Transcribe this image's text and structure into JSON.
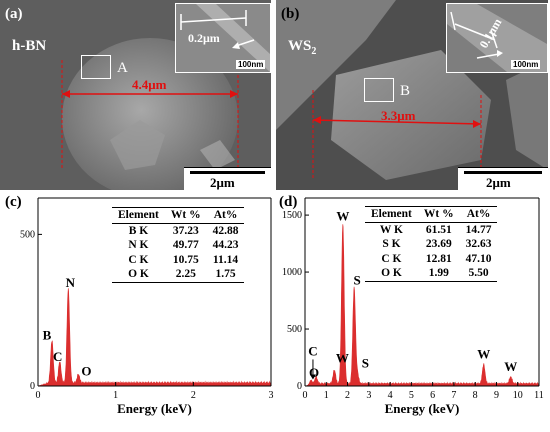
{
  "panel_a": {
    "label": "(a)",
    "material": "h-BN",
    "measurement": "4.4μm",
    "region": "A",
    "scale": "2μm",
    "inset_measure": "0.2μm",
    "inset_scale": "100nm"
  },
  "panel_b": {
    "label": "(b)",
    "material_main": "WS",
    "material_sub": "2",
    "measurement": "3.3μm",
    "region": "B",
    "scale": "2μm",
    "inset_measure": "0.1μm",
    "inset_scale": "100nm"
  },
  "chart_data": [
    {
      "type": "area",
      "panel": "(c)",
      "title": "",
      "xlabel": "Energy (keV)",
      "ylabel": "",
      "xlim": [
        0,
        3
      ],
      "ylim": [
        0,
        620
      ],
      "xticks": [
        0,
        1,
        2,
        3
      ],
      "yticks": [
        0,
        500
      ],
      "peaks": [
        {
          "label": "B",
          "x": 0.18,
          "y": 140
        },
        {
          "label": "C",
          "x": 0.28,
          "y": 70
        },
        {
          "label": "N",
          "x": 0.39,
          "y": 310
        },
        {
          "label": "O",
          "x": 0.52,
          "y": 28
        }
      ],
      "baseline": 10,
      "color": "#d81818",
      "table": {
        "headers": [
          "Element",
          "Wt %",
          "At%"
        ],
        "rows": [
          [
            "B K",
            "37.23",
            "42.88"
          ],
          [
            "N K",
            "49.77",
            "44.23"
          ],
          [
            "C K",
            "10.75",
            "11.14"
          ],
          [
            "O K",
            "2.25",
            "1.75"
          ]
        ]
      }
    },
    {
      "type": "area",
      "panel": "(d)",
      "title": "",
      "xlabel": "Energy (keV)",
      "ylabel": "",
      "xlim": [
        0,
        11
      ],
      "ylim": [
        0,
        1650
      ],
      "xticks": [
        0,
        1,
        2,
        3,
        4,
        5,
        6,
        7,
        8,
        9,
        10,
        11
      ],
      "yticks": [
        0,
        500,
        1000,
        1500
      ],
      "peaks": [
        {
          "label": "C",
          "x": 0.28,
          "y": 40
        },
        {
          "label": "O",
          "x": 0.52,
          "y": 60
        },
        {
          "label": "W",
          "x": 1.38,
          "y": 120
        },
        {
          "label": "W",
          "x": 1.78,
          "y": 1400
        },
        {
          "label": "S",
          "x": 2.31,
          "y": 840
        },
        {
          "label": "S",
          "x": 2.46,
          "y": 90
        },
        {
          "label": "W",
          "x": 8.4,
          "y": 170
        },
        {
          "label": "W",
          "x": 9.67,
          "y": 60
        }
      ],
      "baseline": 20,
      "color": "#d81818",
      "table": {
        "headers": [
          "Element",
          "Wt %",
          "At%"
        ],
        "rows": [
          [
            "W K",
            "61.51",
            "14.77"
          ],
          [
            "S K",
            "23.69",
            "32.63"
          ],
          [
            "C K",
            "12.81",
            "47.10"
          ],
          [
            "O K",
            "1.99",
            "5.50"
          ]
        ]
      }
    }
  ]
}
